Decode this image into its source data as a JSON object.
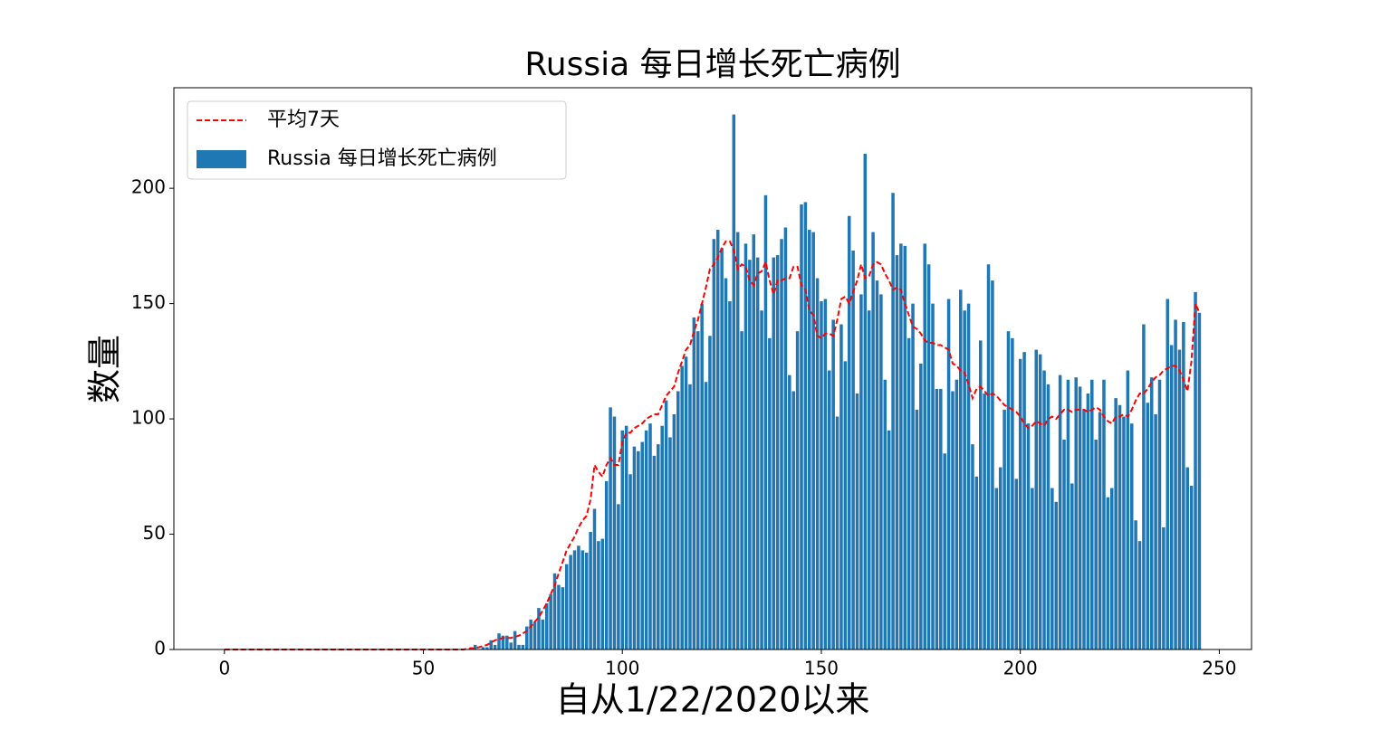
{
  "chart_data": {
    "type": "bar-line",
    "title": "Russia 每日增长死亡病例",
    "xlabel": "自从1/22/2020以来",
    "ylabel": "数量",
    "xlim": [
      -12.7,
      258.1
    ],
    "xticks": [
      0,
      50,
      100,
      150,
      200,
      250
    ],
    "ylim": [
      0,
      243.6
    ],
    "yticks": [
      0,
      50,
      100,
      150,
      200
    ],
    "legend": "upper left",
    "x": [
      0,
      1,
      2,
      3,
      4,
      5,
      6,
      7,
      8,
      9,
      10,
      11,
      12,
      13,
      14,
      15,
      16,
      17,
      18,
      19,
      20,
      21,
      22,
      23,
      24,
      25,
      26,
      27,
      28,
      29,
      30,
      31,
      32,
      33,
      34,
      35,
      36,
      37,
      38,
      39,
      40,
      41,
      42,
      43,
      44,
      45,
      46,
      47,
      48,
      49,
      50,
      51,
      52,
      53,
      54,
      55,
      56,
      57,
      58,
      59,
      60,
      61,
      62,
      63,
      64,
      65,
      66,
      67,
      68,
      69,
      70,
      71,
      72,
      73,
      74,
      75,
      76,
      77,
      78,
      79,
      80,
      81,
      82,
      83,
      84,
      85,
      86,
      87,
      88,
      89,
      90,
      91,
      92,
      93,
      94,
      95,
      96,
      97,
      98,
      99,
      100,
      101,
      102,
      103,
      104,
      105,
      106,
      107,
      108,
      109,
      110,
      111,
      112,
      113,
      114,
      115,
      116,
      117,
      118,
      119,
      120,
      121,
      122,
      123,
      124,
      125,
      126,
      127,
      128,
      129,
      130,
      131,
      132,
      133,
      134,
      135,
      136,
      137,
      138,
      139,
      140,
      141,
      142,
      143,
      144,
      145,
      146,
      147,
      148,
      149,
      150,
      151,
      152,
      153,
      154,
      155,
      156,
      157,
      158,
      159,
      160,
      161,
      162,
      163,
      164,
      165,
      166,
      167,
      168,
      169,
      170,
      171,
      172,
      173,
      174,
      175,
      176,
      177,
      178,
      179,
      180,
      181,
      182,
      183,
      184,
      185,
      186,
      187,
      188,
      189,
      190,
      191,
      192,
      193,
      194,
      195,
      196,
      197,
      198,
      199,
      200,
      201,
      202,
      203,
      204,
      205,
      206,
      207,
      208,
      209,
      210,
      211,
      212,
      213,
      214,
      215,
      216,
      217,
      218,
      219,
      220,
      221,
      222,
      223,
      224,
      225,
      226,
      227,
      228,
      229,
      230,
      231,
      232,
      233,
      234,
      235,
      236,
      237,
      238,
      239,
      240,
      241,
      242,
      243,
      244,
      245
    ],
    "series": [
      {
        "name": "平均7天",
        "type": "line",
        "color": "#ff0000",
        "values": [
          0,
          0,
          0,
          0,
          0,
          0,
          0,
          0,
          0,
          0,
          0,
          0,
          0,
          0,
          0,
          0,
          0,
          0,
          0,
          0,
          0,
          0,
          0,
          0,
          0,
          0,
          0,
          0,
          0,
          0,
          0,
          0,
          0,
          0,
          0,
          0,
          0,
          0,
          0,
          0,
          0,
          0,
          0,
          0,
          0,
          0,
          0,
          0,
          0,
          0,
          0,
          0,
          0,
          0,
          0,
          0,
          0,
          0,
          0,
          0,
          0,
          0.3,
          0.4,
          0.6,
          1,
          1.5,
          2,
          3,
          4,
          4.5,
          5,
          5,
          5,
          5.5,
          6,
          7,
          8,
          10,
          12,
          14,
          17,
          20,
          24,
          28,
          33,
          38,
          43,
          46,
          49,
          53,
          56,
          58,
          65,
          80,
          77,
          75,
          80,
          83,
          80,
          80,
          90,
          94,
          94,
          96,
          97,
          98,
          100,
          101,
          102,
          102,
          106,
          110,
          112,
          114,
          120,
          125,
          130,
          132,
          138,
          143,
          150,
          157,
          165,
          167,
          170,
          174,
          177,
          177,
          173,
          165,
          167,
          166,
          160,
          158,
          163,
          164,
          168,
          160,
          154,
          160,
          160,
          161,
          161,
          166,
          166,
          158,
          156,
          147,
          145,
          136,
          135,
          137,
          137,
          136,
          143,
          152,
          153,
          150,
          155,
          160,
          167,
          161,
          162,
          167,
          168,
          167,
          163,
          160,
          156,
          157,
          156,
          150,
          145,
          140,
          139,
          137,
          134,
          133,
          133,
          132,
          132,
          131,
          130,
          124,
          123,
          121,
          120,
          115,
          109,
          113,
          114,
          112,
          110,
          111,
          110,
          108,
          106,
          105,
          104,
          103,
          101,
          98,
          96,
          97,
          99,
          98,
          97,
          100,
          101,
          100,
          102,
          104,
          104,
          103,
          104,
          104,
          104,
          103,
          104,
          105,
          104,
          101,
          99,
          98,
          101,
          101,
          102,
          101,
          104,
          108,
          111,
          111,
          113,
          116,
          118,
          119,
          121,
          122,
          123,
          123,
          121,
          117,
          112,
          125,
          150,
          146
        ]
      },
      {
        "name": "Russia 每日增长死亡病例",
        "type": "bar",
        "color": "#1f77b4",
        "values": [
          0,
          0,
          0,
          0,
          0,
          0,
          0,
          0,
          0,
          0,
          0,
          0,
          0,
          0,
          0,
          0,
          0,
          0,
          0,
          0,
          0,
          0,
          0,
          0,
          0,
          0,
          0,
          0,
          0,
          0,
          0,
          0,
          0,
          0,
          0,
          0,
          0,
          0,
          0,
          0,
          0,
          0,
          0,
          0,
          0,
          0,
          0,
          0,
          0,
          0,
          0,
          0,
          0,
          0,
          0,
          0,
          0,
          0,
          0,
          0,
          0,
          0,
          1,
          2,
          0,
          1,
          1,
          4,
          2,
          7,
          6,
          6,
          3,
          8,
          2,
          2,
          10,
          13,
          12,
          18,
          13,
          20,
          24,
          33,
          28,
          27,
          37,
          41,
          43,
          45,
          43,
          42,
          51,
          61,
          47,
          48,
          73,
          105,
          101,
          63,
          95,
          97,
          76,
          88,
          86,
          90,
          95,
          98,
          84,
          89,
          97,
          108,
          92,
          102,
          112,
          123,
          127,
          115,
          144,
          138,
          150,
          116,
          136,
          178,
          182,
          174,
          161,
          151,
          232,
          181,
          138,
          176,
          169,
          180,
          170,
          147,
          197,
          135,
          170,
          171,
          178,
          183,
          119,
          112,
          138,
          193,
          194,
          182,
          181,
          161,
          151,
          152,
          121,
          143,
          101,
          141,
          125,
          188,
          173,
          111,
          154,
          215,
          147,
          181,
          160,
          154,
          117,
          95,
          198,
          171,
          176,
          175,
          135,
          150,
          104,
          124,
          176,
          167,
          150,
          113,
          113,
          85,
          152,
          112,
          117,
          156,
          147,
          150,
          89,
          75,
          134,
          111,
          167,
          160,
          70,
          79,
          104,
          138,
          135,
          74,
          126,
          129,
          98,
          70,
          130,
          128,
          121,
          115,
          70,
          64,
          119,
          91,
          117,
          72,
          118,
          114,
          104,
          111,
          117,
          91,
          103,
          117,
          66,
          70,
          109,
          106,
          101,
          121,
          98,
          56,
          47,
          141,
          107,
          118,
          102,
          117,
          53,
          152,
          132,
          143,
          130,
          142,
          79,
          71,
          155,
          146
        ]
      }
    ]
  }
}
